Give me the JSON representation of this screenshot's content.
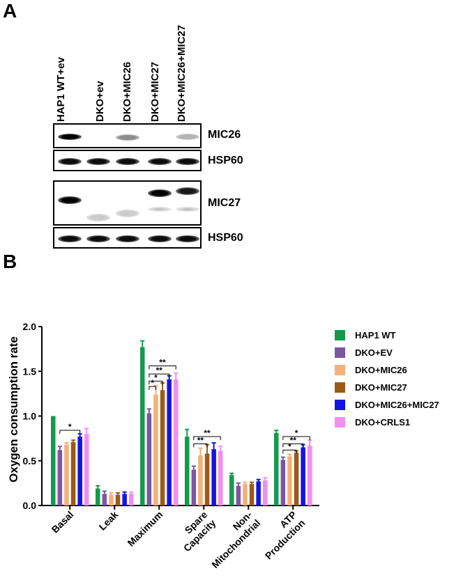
{
  "panel_a": {
    "letter": "A",
    "lanes": [
      "HAP1 WT+ev",
      "DKO+ev",
      "DKO+MIC26",
      "DKO+MIC27",
      "DKO+MIC26+MIC27"
    ],
    "blots": [
      {
        "label": "MIC26",
        "bands": [
          {
            "lane": 0,
            "intensity": 1.0
          },
          {
            "lane": 2,
            "intensity": 0.45
          },
          {
            "lane": 4,
            "intensity": 0.3
          }
        ]
      },
      {
        "label": "HSP60",
        "bands": [
          {
            "lane": 0,
            "intensity": 0.95
          },
          {
            "lane": 1,
            "intensity": 0.95
          },
          {
            "lane": 2,
            "intensity": 0.95
          },
          {
            "lane": 3,
            "intensity": 0.95
          },
          {
            "lane": 4,
            "intensity": 0.95
          }
        ]
      },
      {
        "label": "MIC27",
        "bands": [
          {
            "lane": 0,
            "intensity": 1.0
          },
          {
            "lane": 1,
            "intensity": 0.2
          },
          {
            "lane": 2,
            "intensity": 0.2
          },
          {
            "lane": 3,
            "intensity": 1.0
          },
          {
            "lane": 4,
            "intensity": 0.9
          }
        ]
      },
      {
        "label": "HSP60",
        "bands": [
          {
            "lane": 0,
            "intensity": 0.95
          },
          {
            "lane": 1,
            "intensity": 0.95
          },
          {
            "lane": 2,
            "intensity": 0.95
          },
          {
            "lane": 3,
            "intensity": 0.95
          },
          {
            "lane": 4,
            "intensity": 0.95
          }
        ]
      }
    ]
  },
  "panel_b": {
    "letter": "B"
  },
  "chart_data": {
    "type": "bar",
    "ylabel": "Oxygen consumption rate",
    "ylim": [
      0,
      2.0
    ],
    "yticks": [
      "0.0",
      "0.5",
      "1.0",
      "1.5",
      "2.0"
    ],
    "categories": [
      "Basal",
      "Leak",
      "Maximum",
      "Spare Capacity",
      "Non-Mitochondrial",
      "ATP Production"
    ],
    "category_labels": [
      [
        "Basal"
      ],
      [
        "Leak"
      ],
      [
        "Maximum"
      ],
      [
        "Spare",
        "Capacity"
      ],
      [
        "Non-",
        "Mitochondrial"
      ],
      [
        "ATP",
        "Production"
      ]
    ],
    "legend_position": "right",
    "series": [
      {
        "name": "HAP1 WT",
        "color": "#139a4b",
        "values": [
          1.0,
          0.19,
          1.77,
          0.77,
          0.34,
          0.81
        ],
        "errors": [
          0.0,
          0.03,
          0.07,
          0.08,
          0.02,
          0.03
        ]
      },
      {
        "name": "DKO+EV",
        "color": "#7b56a1",
        "values": [
          0.62,
          0.13,
          1.03,
          0.4,
          0.22,
          0.51
        ],
        "errors": [
          0.04,
          0.03,
          0.05,
          0.04,
          0.03,
          0.03
        ]
      },
      {
        "name": "DKO+MIC26",
        "color": "#f4b07a",
        "values": [
          0.68,
          0.12,
          1.24,
          0.56,
          0.24,
          0.55
        ],
        "errors": [
          0.02,
          0.02,
          0.1,
          0.08,
          0.02,
          0.02
        ]
      },
      {
        "name": "DKO+MIC27",
        "color": "#9a5b17",
        "values": [
          0.71,
          0.12,
          1.29,
          0.58,
          0.24,
          0.59
        ],
        "errors": [
          0.02,
          0.02,
          0.08,
          0.1,
          0.02,
          0.02
        ]
      },
      {
        "name": "DKO+MIC26+MIC27",
        "color": "#1414e6",
        "values": [
          0.77,
          0.13,
          1.41,
          0.63,
          0.27,
          0.65
        ],
        "errors": [
          0.03,
          0.02,
          0.04,
          0.07,
          0.02,
          0.03
        ]
      },
      {
        "name": "DKO+CRLS1",
        "color": "#f28ef0",
        "values": [
          0.8,
          0.13,
          1.41,
          0.61,
          0.28,
          0.67
        ],
        "errors": [
          0.06,
          0.02,
          0.07,
          0.05,
          0.03,
          0.06
        ]
      }
    ],
    "significance": [
      {
        "category": 0,
        "from": 1,
        "to": 4,
        "y": 0.84,
        "label": "*"
      },
      {
        "category": 2,
        "from": 1,
        "to": 2,
        "y": 1.33,
        "label": "*"
      },
      {
        "category": 2,
        "from": 1,
        "to": 3,
        "y": 1.39,
        "label": "*"
      },
      {
        "category": 2,
        "from": 1,
        "to": 4,
        "y": 1.47,
        "label": "**"
      },
      {
        "category": 2,
        "from": 1,
        "to": 5,
        "y": 1.56,
        "label": "**"
      },
      {
        "category": 3,
        "from": 1,
        "to": 3,
        "y": 0.69,
        "label": "**"
      },
      {
        "category": 3,
        "from": 1,
        "to": 5,
        "y": 0.77,
        "label": "**"
      },
      {
        "category": 5,
        "from": 1,
        "to": 3,
        "y": 0.62,
        "label": "*"
      },
      {
        "category": 5,
        "from": 1,
        "to": 4,
        "y": 0.69,
        "label": "**"
      },
      {
        "category": 5,
        "from": 1,
        "to": 5,
        "y": 0.77,
        "label": "*"
      }
    ]
  }
}
